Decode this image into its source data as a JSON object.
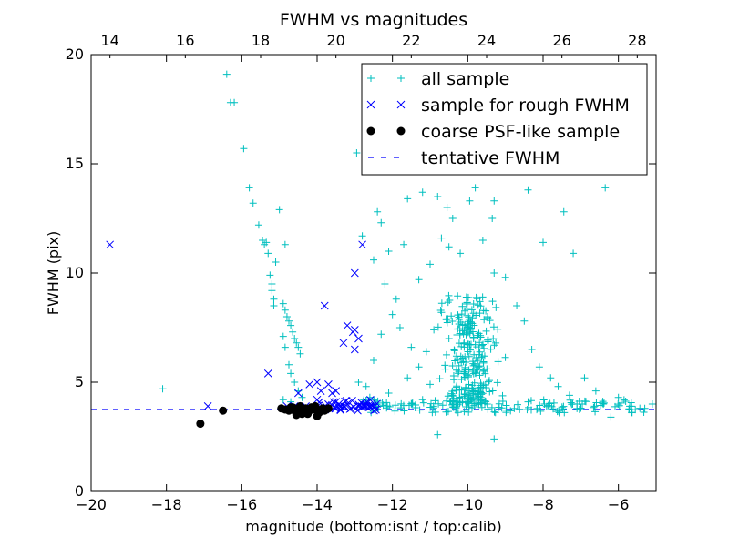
{
  "chart_data": {
    "type": "scatter",
    "title": "FWHM vs magnitudes",
    "xlabel": "magnitude (bottom:isnt / top:calib)",
    "ylabel": "FWHM (pix)",
    "xlim": [
      -20,
      -5
    ],
    "ylim": [
      0,
      20
    ],
    "top_axis": {
      "offset": 33.5,
      "ticks": [
        "14",
        "16",
        "18",
        "20",
        "22",
        "24",
        "26",
        "28"
      ]
    },
    "x_ticks": [
      "−20",
      "−18",
      "−16",
      "−14",
      "−12",
      "−10",
      "−8",
      "−6"
    ],
    "y_ticks": [
      "0",
      "5",
      "10",
      "15",
      "20"
    ],
    "legend_position": "upper-right",
    "colors": {
      "all": "#00bfbf",
      "rough": "#0000ff",
      "coarse": "#000000",
      "tentative": "#0000ff"
    },
    "series": [
      {
        "name": "all sample",
        "marker": "plus",
        "points": [
          [
            -18.1,
            4.7
          ],
          [
            -16.4,
            19.1
          ],
          [
            -16.3,
            17.8
          ],
          [
            -16.2,
            17.8
          ],
          [
            -15.95,
            15.7
          ],
          [
            -15.8,
            13.9
          ],
          [
            -15.7,
            13.2
          ],
          [
            -15.55,
            12.2
          ],
          [
            -15.45,
            11.5
          ],
          [
            -15.4,
            11.3
          ],
          [
            -15.35,
            11.4
          ],
          [
            -15.3,
            10.9
          ],
          [
            -15.25,
            9.9
          ],
          [
            -15.2,
            9.5
          ],
          [
            -15.2,
            9.2
          ],
          [
            -15.15,
            8.8
          ],
          [
            -15.15,
            8.5
          ],
          [
            -15.1,
            10.5
          ],
          [
            -15.0,
            12.9
          ],
          [
            -14.85,
            11.3
          ],
          [
            -14.9,
            8.6
          ],
          [
            -14.85,
            8.3
          ],
          [
            -14.8,
            8.0
          ],
          [
            -14.75,
            7.8
          ],
          [
            -14.7,
            7.6
          ],
          [
            -14.65,
            7.3
          ],
          [
            -14.6,
            7.0
          ],
          [
            -14.55,
            6.8
          ],
          [
            -14.5,
            6.6
          ],
          [
            -14.45,
            6.3
          ],
          [
            -14.9,
            7.1
          ],
          [
            -14.85,
            6.6
          ],
          [
            -14.75,
            5.8
          ],
          [
            -14.7,
            5.4
          ],
          [
            -14.6,
            5.0
          ],
          [
            -14.5,
            4.6
          ],
          [
            -14.4,
            4.3
          ],
          [
            -14.9,
            4.2
          ],
          [
            -14.7,
            4.1
          ],
          [
            -12.95,
            15.5
          ],
          [
            -12.4,
            12.8
          ],
          [
            -12.3,
            12.3
          ],
          [
            -11.6,
            13.4
          ],
          [
            -11.2,
            13.7
          ],
          [
            -10.8,
            13.5
          ],
          [
            -10.55,
            13.0
          ],
          [
            -10.4,
            12.5
          ],
          [
            -9.95,
            13.3
          ],
          [
            -9.8,
            13.9
          ],
          [
            -9.35,
            12.5
          ],
          [
            -9.3,
            13.3
          ],
          [
            -8.4,
            13.8
          ],
          [
            -7.45,
            12.8
          ],
          [
            -7.2,
            10.9
          ],
          [
            -6.35,
            13.9
          ],
          [
            -8.0,
            11.4
          ],
          [
            -12.8,
            11.7
          ],
          [
            -12.5,
            10.6
          ],
          [
            -12.1,
            11.0
          ],
          [
            -11.7,
            11.3
          ],
          [
            -12.2,
            9.5
          ],
          [
            -11.9,
            8.8
          ],
          [
            -11.3,
            9.7
          ],
          [
            -11.0,
            10.4
          ],
          [
            -10.7,
            11.6
          ],
          [
            -10.5,
            11.2
          ],
          [
            -10.2,
            10.9
          ],
          [
            -9.6,
            11.5
          ],
          [
            -9.3,
            10.0
          ],
          [
            -9.0,
            9.8
          ],
          [
            -8.7,
            8.5
          ],
          [
            -8.5,
            7.8
          ],
          [
            -8.3,
            6.5
          ],
          [
            -8.1,
            5.7
          ],
          [
            -7.8,
            5.2
          ],
          [
            -7.6,
            4.8
          ],
          [
            -7.3,
            4.4
          ],
          [
            -7.1,
            4.0
          ],
          [
            -6.9,
            5.2
          ],
          [
            -6.6,
            4.6
          ],
          [
            -6.4,
            4.0
          ],
          [
            -6.2,
            3.4
          ],
          [
            -6.0,
            4.3
          ],
          [
            -5.7,
            3.9
          ],
          [
            -5.3,
            3.8
          ],
          [
            -5.1,
            4.0
          ],
          [
            -12.7,
            4.8
          ],
          [
            -12.5,
            6.0
          ],
          [
            -12.3,
            7.2
          ],
          [
            -12.0,
            8.1
          ],
          [
            -11.8,
            7.5
          ],
          [
            -11.5,
            6.6
          ],
          [
            -11.3,
            5.7
          ],
          [
            -11.1,
            6.4
          ],
          [
            -10.9,
            7.4
          ],
          [
            -10.7,
            8.2
          ],
          [
            -10.5,
            7.0
          ],
          [
            -10.3,
            6.2
          ],
          [
            -10.1,
            5.4
          ],
          [
            -11.2,
            4.2
          ],
          [
            -10.8,
            2.6
          ],
          [
            -9.3,
            2.4
          ],
          [
            -12.9,
            5.0
          ],
          [
            -12.6,
            4.3
          ],
          [
            -12.1,
            4.5
          ],
          [
            -11.6,
            5.2
          ],
          [
            -11.0,
            4.9
          ],
          [
            -10.6,
            5.6
          ]
        ],
        "cluster": {
          "x_range": [
            -10.9,
            -8.9
          ],
          "y_range": [
            4.0,
            9.0
          ],
          "count": 260,
          "seed": 7
        },
        "band": {
          "x_range": [
            -12.8,
            -5.2
          ],
          "y_range": [
            3.6,
            4.2
          ],
          "count": 140,
          "seed": 19
        }
      },
      {
        "name": "sample for rough FWHM",
        "marker": "x",
        "points": [
          [
            -19.5,
            11.3
          ],
          [
            -16.9,
            3.9
          ],
          [
            -15.3,
            5.4
          ],
          [
            -14.8,
            3.9
          ],
          [
            -14.5,
            4.5
          ],
          [
            -14.3,
            3.9
          ],
          [
            -14.0,
            4.2
          ],
          [
            -13.9,
            4.6
          ],
          [
            -13.6,
            4.5
          ],
          [
            -13.5,
            4.6
          ],
          [
            -13.7,
            4.9
          ],
          [
            -14.2,
            4.9
          ],
          [
            -14.0,
            5.0
          ],
          [
            -13.8,
            8.5
          ],
          [
            -13.3,
            6.8
          ],
          [
            -13.2,
            7.6
          ],
          [
            -13.05,
            7.3
          ],
          [
            -13.0,
            7.4
          ],
          [
            -13.0,
            6.5
          ],
          [
            -12.9,
            7.0
          ],
          [
            -13.0,
            10.0
          ],
          [
            -12.8,
            11.3
          ],
          [
            -14.4,
            3.8
          ],
          [
            -14.6,
            3.9
          ],
          [
            -13.3,
            3.9
          ],
          [
            -13.1,
            3.8
          ],
          [
            -12.9,
            3.9
          ],
          [
            -12.7,
            4.0
          ],
          [
            -12.6,
            3.9
          ],
          [
            -12.5,
            3.85
          ],
          [
            -13.5,
            4.1
          ],
          [
            -13.4,
            3.9
          ],
          [
            -13.2,
            4.0
          ],
          [
            -12.8,
            3.85
          ],
          [
            -13.6,
            3.95
          ],
          [
            -14.1,
            3.85
          ]
        ],
        "band": {
          "x_range": [
            -14.0,
            -12.4
          ],
          "y_range": [
            3.7,
            4.2
          ],
          "count": 40,
          "seed": 3
        }
      },
      {
        "name": "coarse PSF-like sample",
        "marker": "dot",
        "points": [
          [
            -17.1,
            3.1
          ],
          [
            -16.5,
            3.7
          ],
          [
            -14.95,
            3.8
          ],
          [
            -14.85,
            3.75
          ],
          [
            -14.7,
            3.85
          ],
          [
            -14.6,
            3.7
          ],
          [
            -14.5,
            3.8
          ],
          [
            -14.4,
            3.55
          ],
          [
            -14.35,
            3.6
          ],
          [
            -14.3,
            3.8
          ],
          [
            -14.25,
            3.55
          ],
          [
            -14.2,
            3.7
          ],
          [
            -14.15,
            3.85
          ],
          [
            -14.1,
            3.8
          ],
          [
            -14.05,
            3.75
          ],
          [
            -14.0,
            3.45
          ],
          [
            -13.95,
            3.6
          ],
          [
            -13.9,
            3.7
          ],
          [
            -13.85,
            3.8
          ],
          [
            -13.75,
            3.75
          ],
          [
            -13.7,
            3.8
          ],
          [
            -14.55,
            3.5
          ],
          [
            -14.45,
            3.9
          ],
          [
            -14.75,
            3.7
          ],
          [
            -14.65,
            3.85
          ],
          [
            -14.35,
            3.75
          ],
          [
            -14.05,
            3.9
          ],
          [
            -13.8,
            3.7
          ]
        ]
      }
    ],
    "tentative_fwhm": {
      "name": "tentative FWHM",
      "y": 3.75,
      "style": "dashed"
    },
    "legend": [
      "all sample",
      "sample for rough FWHM",
      "coarse PSF-like sample",
      "tentative FWHM"
    ]
  }
}
